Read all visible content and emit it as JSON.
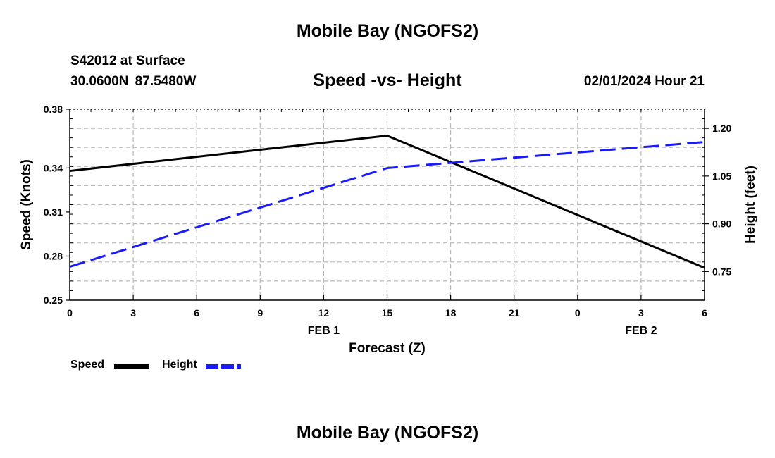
{
  "page": {
    "title_top": "Mobile Bay (NGOFS2)",
    "title_bottom": "Mobile Bay (NGOFS2)",
    "station": "S42012 at Surface",
    "coordinates": "30.0600N  87.5480W",
    "subtitle": "Speed -vs- Height",
    "datetime": "02/01/2024 Hour 21"
  },
  "chart_data": {
    "type": "line",
    "title": "Speed -vs- Height",
    "xlabel": "Forecast (Z)",
    "ylabel": "Speed (Knots)",
    "y2label": "Height (feet)",
    "x_tick_labels": [
      "0",
      "3",
      "6",
      "9",
      "12",
      "15",
      "18",
      "21",
      "0",
      "3",
      "6"
    ],
    "date_labels": [
      {
        "text": "FEB 1",
        "at_tick": 4
      },
      {
        "text": "FEB 2",
        "at_tick": 9
      }
    ],
    "xlim": [
      0,
      30
    ],
    "ylim": [
      0.25,
      0.38
    ],
    "y_ticks": [
      "0.25",
      "0.28",
      "0.31",
      "0.34",
      "0.38"
    ],
    "y2lim": [
      0.66,
      1.26
    ],
    "y2_ticks": [
      "0.75",
      "0.90",
      "1.05",
      "1.20"
    ],
    "grid": true,
    "legend_position": "bottom-left",
    "series": [
      {
        "name": "Speed",
        "axis": "left",
        "color": "#000000",
        "style": "solid",
        "x": [
          0,
          15,
          30
        ],
        "values": [
          0.338,
          0.362,
          0.272
        ]
      },
      {
        "name": "Height",
        "axis": "right",
        "color": "#1a1aff",
        "style": "dashed",
        "x": [
          0,
          15,
          30
        ],
        "values": [
          0.765,
          1.075,
          1.157
        ]
      }
    ]
  }
}
